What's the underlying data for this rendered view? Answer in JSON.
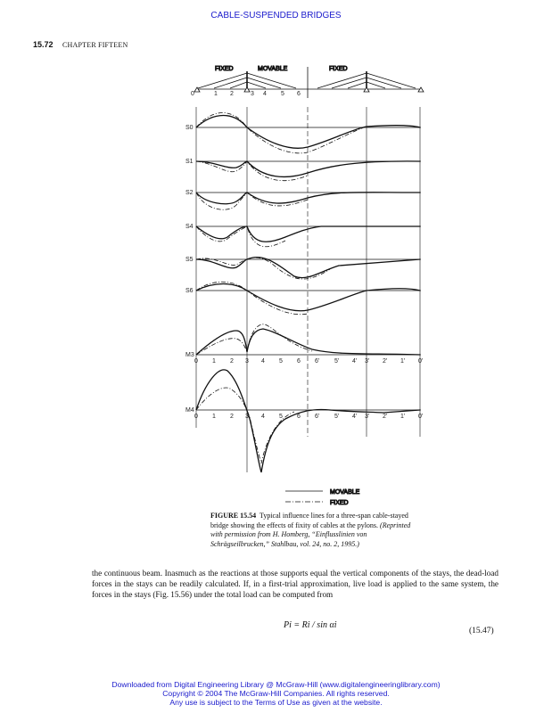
{
  "header": {
    "running_title": "CABLE-SUSPENDED BRIDGES",
    "page_number": "15.72",
    "chapter": "CHAPTER FIFTEEN"
  },
  "figure": {
    "top_labels": {
      "fixed_left": "FIXED",
      "movable": "MOVABLE",
      "fixed_right": "FIXED"
    },
    "node_labels": [
      "0",
      "1",
      "2",
      "3",
      "4",
      "5",
      "6"
    ],
    "row_labels": [
      "S0",
      "S1",
      "S2",
      "S4",
      "S5",
      "S6",
      "M3",
      "M4"
    ],
    "m3_axis_labels": [
      "0",
      "1",
      "2",
      "3",
      "4",
      "5",
      "6",
      "6'",
      "5'",
      "4'",
      "3'",
      "2'",
      "1'",
      "0'"
    ],
    "m4_axis_labels": [
      "0",
      "1",
      "2",
      "3",
      "4",
      "5",
      "6",
      "6'",
      "5'",
      "4'",
      "3'",
      "2'",
      "1'",
      "0'"
    ],
    "legend": [
      {
        "label": "MOVABLE",
        "style": "solid"
      },
      {
        "label": "FIXED",
        "style": "dash-dot"
      }
    ],
    "caption_label": "FIGURE 15.54",
    "caption_text": "Typical influence lines for a three-span cable-stayed bridge showing the effects of fixity of cables at the pylons.",
    "caption_credit": "(Reprinted with permission from H. Homberg, “Einflusslinien von Schrägseilbrucken,” Stahlbau, vol. 24, no. 2, 1995.)"
  },
  "body": {
    "paragraph": "the continuous beam. Inasmuch as the reactions at those supports equal the vertical components of the stays, the dead-load forces in the stays can be readily calculated. If, in a first-trial approximation, live load is applied to the same system, the forces in the stays (Fig. 15.56) under the total load can be computed from",
    "equation": "Pi = Ri / sin αi",
    "equation_number": "(15.47)"
  },
  "footer": {
    "line1": "Downloaded from Digital Engineering Library @ McGraw-Hill (www.digitalengineeringlibrary.com)",
    "line2": "Copyright © 2004 The McGraw-Hill Companies. All rights reserved.",
    "line3": "Any use is subject to the Terms of Use as given at the website."
  }
}
